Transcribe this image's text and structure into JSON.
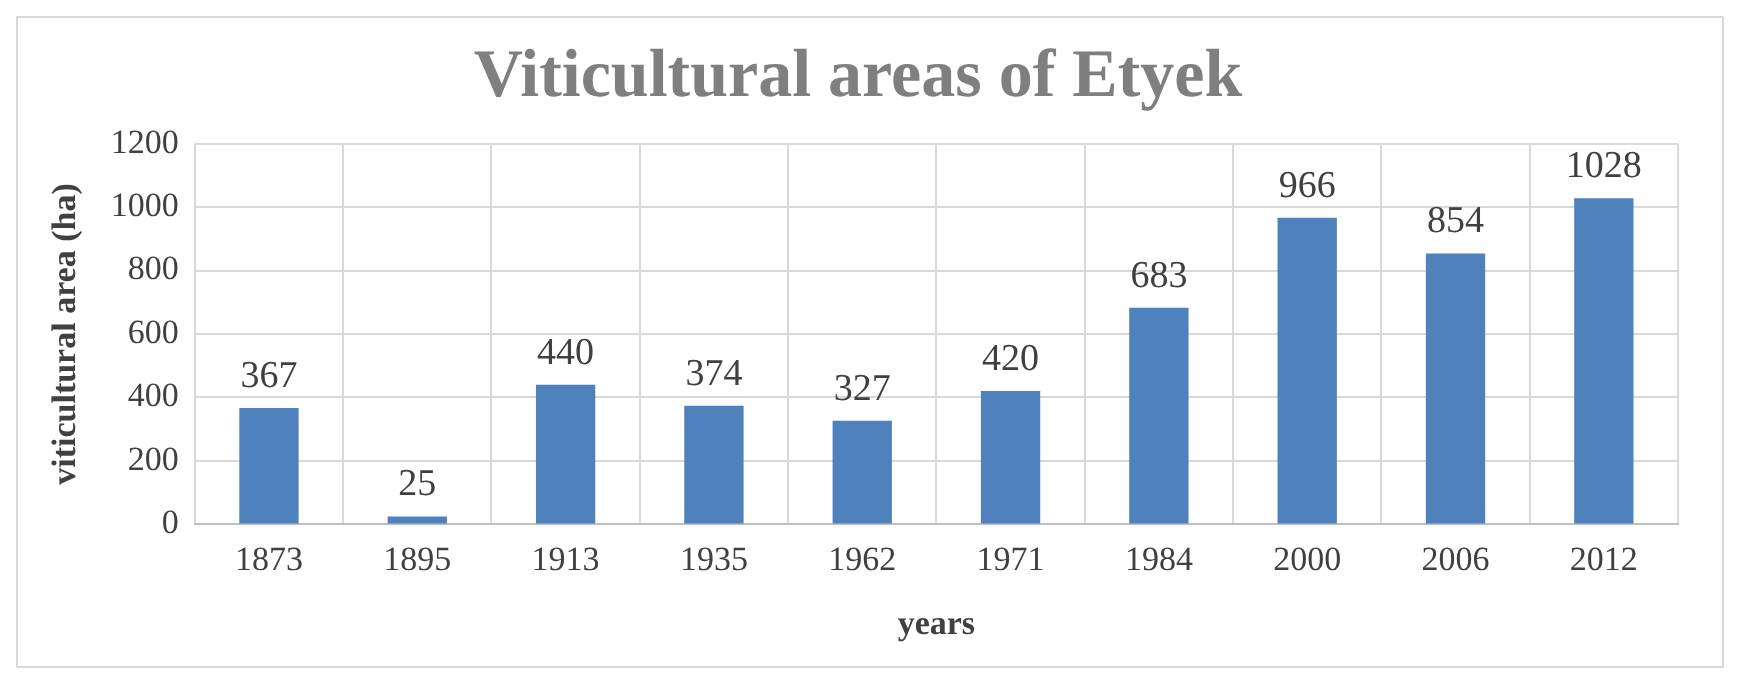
{
  "chart_data": {
    "type": "bar",
    "title": "Viticultural areas of Etyek",
    "xlabel": "years",
    "ylabel": "viticultural area (ha)",
    "categories": [
      "1873",
      "1895",
      "1913",
      "1935",
      "1962",
      "1971",
      "1984",
      "2000",
      "2006",
      "2012"
    ],
    "values": [
      367,
      25,
      440,
      374,
      327,
      420,
      683,
      966,
      854,
      1028
    ],
    "color": "#4f81bd",
    "ylim": [
      0,
      1200
    ],
    "yticks": [
      0,
      200,
      400,
      600,
      800,
      1000,
      1200
    ],
    "grid": true,
    "data_labels": true
  }
}
